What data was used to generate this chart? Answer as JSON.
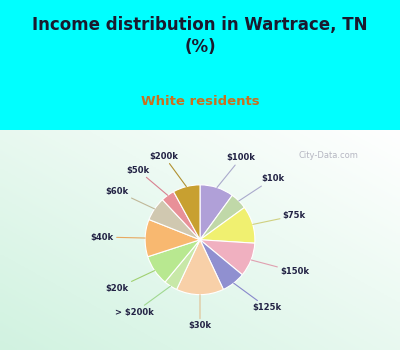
{
  "title": "Income distribution in Wartrace, TN\n(%)",
  "subtitle": "White residents",
  "title_color": "#1a1a2e",
  "subtitle_color": "#c87020",
  "background_top": "#00ffff",
  "watermark": "City-Data.com",
  "labels": [
    "$100k",
    "$10k",
    "$75k",
    "$150k",
    "$125k",
    "$30k",
    "> $200k",
    "$20k",
    "$40k",
    "$60k",
    "$50k",
    "$200k"
  ],
  "values": [
    10,
    5,
    11,
    10,
    7,
    14,
    4,
    9,
    11,
    7,
    4,
    8
  ],
  "colors": [
    "#b0a0d8",
    "#c0d8a8",
    "#f0f070",
    "#f0b0c0",
    "#9090d0",
    "#f8d0a8",
    "#c8e8a8",
    "#b8e890",
    "#f8b870",
    "#d0c8b0",
    "#e89098",
    "#c8a030"
  ],
  "label_color": "#222244",
  "line_color_map": {
    "$100k": "#aaaacc",
    "$10k": "#aaaacc",
    "$75k": "#d0d080",
    "$150k": "#e0a0b0",
    "$125k": "#8888cc",
    "$30k": "#e0c090",
    "> $200k": "#a0d890",
    "$20k": "#a0d070",
    "$40k": "#e8a860",
    "$60k": "#c0b898",
    "$50k": "#d88090",
    "$200k": "#b09030"
  }
}
